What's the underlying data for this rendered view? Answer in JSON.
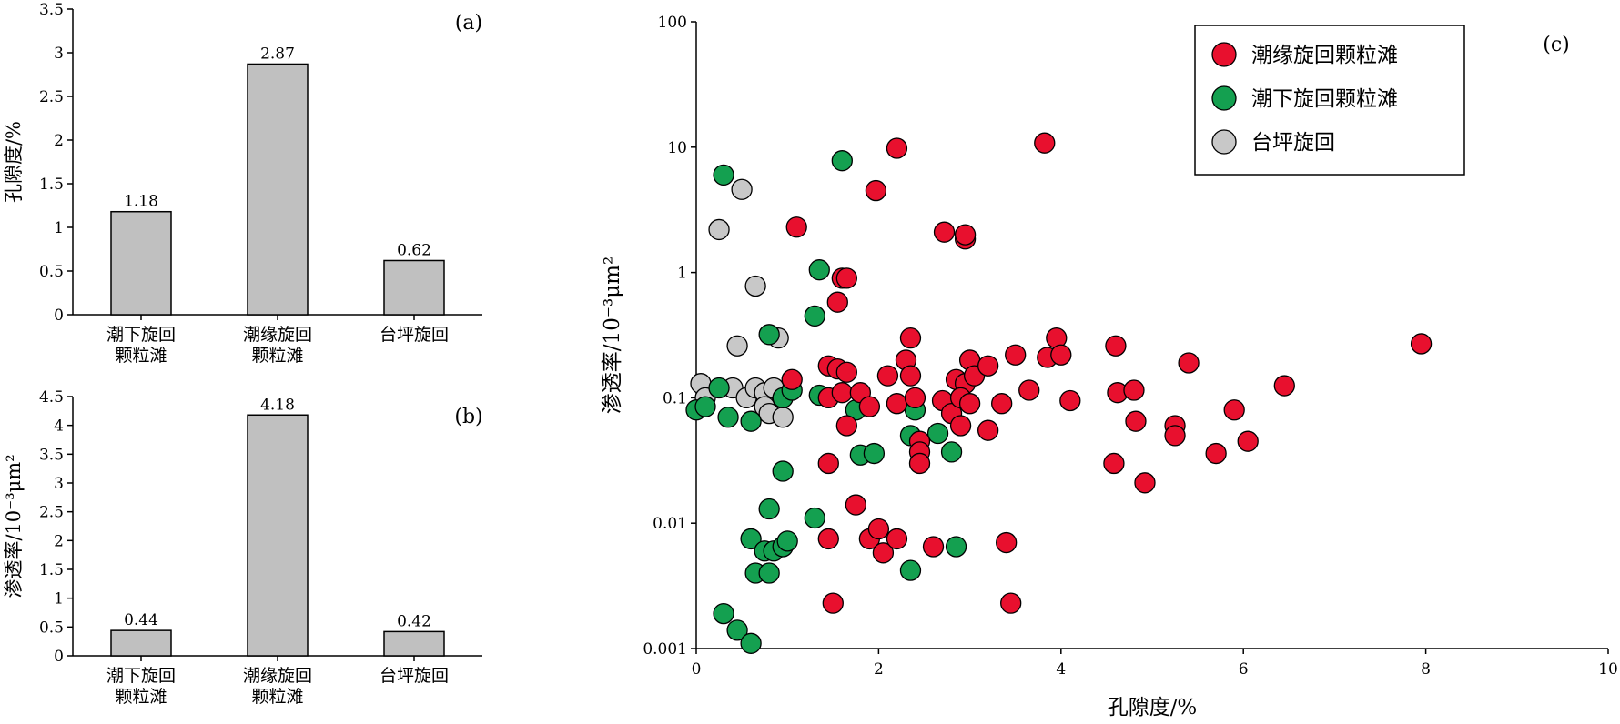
{
  "chart_data": [
    {
      "panel": "(a)",
      "type": "bar",
      "categories": [
        [
          "潮下旋回",
          "颗粒滩"
        ],
        [
          "潮缘旋回",
          "颗粒滩"
        ],
        [
          "台坪旋回"
        ]
      ],
      "values": [
        1.18,
        2.87,
        0.62
      ],
      "data_labels": [
        "1.18",
        "2.87",
        "0.62"
      ],
      "ylabel": "孔隙度/%",
      "ylim": [
        0,
        3.5
      ],
      "yticks": [
        "0",
        "0.5",
        "1",
        "1.5",
        "2",
        "2.5",
        "3",
        "3.5"
      ],
      "bar_color": "#c0c0c0"
    },
    {
      "panel": "(b)",
      "type": "bar",
      "categories": [
        [
          "潮下旋回",
          "颗粒滩"
        ],
        [
          "潮缘旋回",
          "颗粒滩"
        ],
        [
          "台坪旋回"
        ]
      ],
      "values": [
        0.44,
        4.18,
        0.42
      ],
      "data_labels": [
        "0.44",
        "4.18",
        "0.42"
      ],
      "ylabel": "渗透率/10⁻³μm²",
      "ylim": [
        0,
        4.5
      ],
      "yticks": [
        "0",
        "0.5",
        "1",
        "1.5",
        "2",
        "2.5",
        "3",
        "3.5",
        "4",
        "4.5"
      ],
      "bar_color": "#c0c0c0"
    },
    {
      "panel": "(c)",
      "type": "scatter",
      "xlabel": "孔隙度/%",
      "ylabel": "渗透率/10⁻³μm²",
      "xlim": [
        0,
        10
      ],
      "ylim": [
        0.001,
        100
      ],
      "yscale": "log",
      "xticks": [
        "0",
        "2",
        "4",
        "6",
        "8",
        "10"
      ],
      "yticks": [
        "0.001",
        "0.01",
        "0.1",
        "1",
        "10",
        "100"
      ],
      "legend_position": "top-right",
      "series": [
        {
          "name": "潮缘旋回颗粒滩",
          "color": "#e8102e",
          "points": [
            [
              3.82,
              10.8
            ],
            [
              2.2,
              9.8
            ],
            [
              1.97,
              4.5
            ],
            [
              2.72,
              2.1
            ],
            [
              2.95,
              1.85
            ],
            [
              2.95,
              2.0
            ],
            [
              1.1,
              2.3
            ],
            [
              1.6,
              0.9
            ],
            [
              1.65,
              0.9
            ],
            [
              1.55,
              0.58
            ],
            [
              2.35,
              0.3
            ],
            [
              2.3,
              0.2
            ],
            [
              2.35,
              0.15
            ],
            [
              3.0,
              0.2
            ],
            [
              3.5,
              0.22
            ],
            [
              3.85,
              0.21
            ],
            [
              3.95,
              0.3
            ],
            [
              4.0,
              0.22
            ],
            [
              4.6,
              0.26
            ],
            [
              5.4,
              0.19
            ],
            [
              7.95,
              0.27
            ],
            [
              1.05,
              0.14
            ],
            [
              1.45,
              0.18
            ],
            [
              1.55,
              0.17
            ],
            [
              1.65,
              0.16
            ],
            [
              2.1,
              0.15
            ],
            [
              2.85,
              0.14
            ],
            [
              2.95,
              0.13
            ],
            [
              3.05,
              0.15
            ],
            [
              3.2,
              0.18
            ],
            [
              3.65,
              0.115
            ],
            [
              1.45,
              0.1
            ],
            [
              1.6,
              0.11
            ],
            [
              1.8,
              0.11
            ],
            [
              1.9,
              0.085
            ],
            [
              2.2,
              0.09
            ],
            [
              2.4,
              0.1
            ],
            [
              2.7,
              0.095
            ],
            [
              2.8,
              0.075
            ],
            [
              2.9,
              0.1
            ],
            [
              3.0,
              0.09
            ],
            [
              3.35,
              0.09
            ],
            [
              4.1,
              0.095
            ],
            [
              4.62,
              0.11
            ],
            [
              4.8,
              0.115
            ],
            [
              6.45,
              0.125
            ],
            [
              1.65,
              0.06
            ],
            [
              2.9,
              0.06
            ],
            [
              3.2,
              0.055
            ],
            [
              4.82,
              0.065
            ],
            [
              5.9,
              0.08
            ],
            [
              5.25,
              0.06
            ],
            [
              5.25,
              0.05
            ],
            [
              5.7,
              0.036
            ],
            [
              6.05,
              0.045
            ],
            [
              1.45,
              0.03
            ],
            [
              2.45,
              0.045
            ],
            [
              2.45,
              0.037
            ],
            [
              2.45,
              0.03
            ],
            [
              4.58,
              0.03
            ],
            [
              4.92,
              0.021
            ],
            [
              1.75,
              0.014
            ],
            [
              1.45,
              0.0075
            ],
            [
              1.9,
              0.0075
            ],
            [
              2.0,
              0.009
            ],
            [
              2.05,
              0.0058
            ],
            [
              2.2,
              0.0075
            ],
            [
              2.6,
              0.0065
            ],
            [
              3.4,
              0.007
            ],
            [
              1.5,
              0.0023
            ],
            [
              3.45,
              0.0023
            ]
          ]
        },
        {
          "name": "潮下旋回颗粒滩",
          "color": "#14a050",
          "points": [
            [
              0.3,
              6.0
            ],
            [
              1.6,
              7.8
            ],
            [
              1.35,
              1.05
            ],
            [
              1.3,
              0.45
            ],
            [
              0.8,
              0.32
            ],
            [
              0.0,
              0.08
            ],
            [
              0.1,
              0.085
            ],
            [
              0.25,
              0.12
            ],
            [
              0.35,
              0.07
            ],
            [
              0.6,
              0.065
            ],
            [
              0.95,
              0.1
            ],
            [
              1.05,
              0.115
            ],
            [
              1.35,
              0.105
            ],
            [
              1.75,
              0.08
            ],
            [
              2.4,
              0.08
            ],
            [
              1.8,
              0.035
            ],
            [
              1.95,
              0.036
            ],
            [
              2.35,
              0.05
            ],
            [
              2.65,
              0.052
            ],
            [
              2.8,
              0.037
            ],
            [
              0.95,
              0.026
            ],
            [
              0.8,
              0.013
            ],
            [
              1.3,
              0.011
            ],
            [
              0.6,
              0.0075
            ],
            [
              0.75,
              0.006
            ],
            [
              0.85,
              0.006
            ],
            [
              0.65,
              0.004
            ],
            [
              0.8,
              0.004
            ],
            [
              0.95,
              0.0065
            ],
            [
              1.0,
              0.0072
            ],
            [
              2.85,
              0.0065
            ],
            [
              2.35,
              0.0042
            ],
            [
              0.3,
              0.0019
            ],
            [
              0.45,
              0.0014
            ],
            [
              0.6,
              0.0011
            ]
          ]
        },
        {
          "name": "台坪旋回",
          "color": "#c8c8c8",
          "points": [
            [
              0.5,
              4.6
            ],
            [
              0.25,
              2.2
            ],
            [
              0.65,
              0.78
            ],
            [
              0.45,
              0.26
            ],
            [
              0.9,
              0.3
            ],
            [
              0.05,
              0.13
            ],
            [
              0.1,
              0.1
            ],
            [
              0.4,
              0.12
            ],
            [
              0.55,
              0.1
            ],
            [
              0.65,
              0.12
            ],
            [
              0.75,
              0.11
            ],
            [
              0.85,
              0.12
            ],
            [
              0.75,
              0.085
            ],
            [
              0.8,
              0.075
            ],
            [
              0.95,
              0.07
            ]
          ]
        }
      ]
    }
  ]
}
